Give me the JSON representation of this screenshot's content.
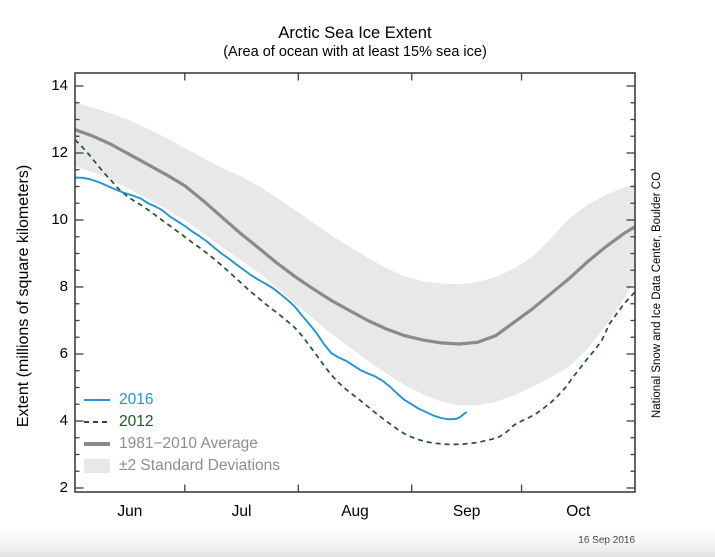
{
  "title": "Arctic Sea Ice Extent",
  "subtitle": "(Area of ocean with at least 15% sea ice)",
  "y_axis": {
    "label": "Extent (millions of square kilometers)",
    "min": 2,
    "max": 14,
    "major_tick_values": [
      2,
      4,
      6,
      8,
      10,
      12,
      14
    ],
    "minor_tick_step": 0.5
  },
  "x_axis": {
    "months": [
      {
        "label": "Jun",
        "center_day": 15
      },
      {
        "label": "Jul",
        "center_day": 45.5
      },
      {
        "label": "Aug",
        "center_day": 76.5
      },
      {
        "label": "Sep",
        "center_day": 107
      },
      {
        "label": "Oct",
        "center_day": 137.5
      }
    ],
    "month_start_tick_days": [
      30,
      61,
      92,
      122
    ],
    "total_days": 153
  },
  "legend": {
    "items": [
      {
        "label": "2016"
      },
      {
        "label": "2012"
      },
      {
        "label": "1981−2010 Average"
      },
      {
        "label": "±2 Standard Deviations"
      }
    ]
  },
  "annotations": {
    "source_vertical": "National Snow and Ice Data Center, Boulder CO",
    "date_label": "16 Sep 2016"
  },
  "colors": {
    "line_2016": "#2193d6",
    "line_2012": "#26512c",
    "average_line": "#8a8a8a",
    "std_dev_band": "#e8e8e8",
    "frame": "#3f3f3f",
    "muted_text": "#8e8e8e"
  },
  "chart_data": {
    "type": "line",
    "title": "Arctic Sea Ice Extent",
    "subtitle": "(Area of ocean with at least 15% sea ice)",
    "xlabel_months": [
      "Jun",
      "Jul",
      "Aug",
      "Sep",
      "Oct"
    ],
    "ylabel": "Extent (millions of square kilometers)",
    "x_unit": "days since Jun 1",
    "x_range_days": [
      0,
      153
    ],
    "ylim": [
      2,
      14
    ],
    "units": "millions of square kilometers",
    "grid": false,
    "legend_position": "lower left",
    "series": [
      {
        "name": "2016",
        "style": "solid",
        "points": [
          [
            0,
            11.27
          ],
          [
            2,
            11.26
          ],
          [
            4,
            11.22
          ],
          [
            6,
            11.15
          ],
          [
            8,
            11.06
          ],
          [
            10,
            10.96
          ],
          [
            12,
            10.87
          ],
          [
            14,
            10.79
          ],
          [
            16,
            10.72
          ],
          [
            18,
            10.64
          ],
          [
            20,
            10.5
          ],
          [
            22,
            10.4
          ],
          [
            24,
            10.28
          ],
          [
            26,
            10.1
          ],
          [
            28,
            9.96
          ],
          [
            30,
            9.82
          ],
          [
            32,
            9.66
          ],
          [
            34,
            9.52
          ],
          [
            36,
            9.36
          ],
          [
            38,
            9.18
          ],
          [
            40,
            9.0
          ],
          [
            42,
            8.85
          ],
          [
            44,
            8.68
          ],
          [
            46,
            8.52
          ],
          [
            48,
            8.36
          ],
          [
            50,
            8.22
          ],
          [
            52,
            8.1
          ],
          [
            54,
            7.97
          ],
          [
            56,
            7.8
          ],
          [
            58,
            7.62
          ],
          [
            60,
            7.42
          ],
          [
            62,
            7.15
          ],
          [
            64,
            6.9
          ],
          [
            66,
            6.62
          ],
          [
            68,
            6.3
          ],
          [
            70,
            6.03
          ],
          [
            72,
            5.9
          ],
          [
            74,
            5.8
          ],
          [
            76,
            5.66
          ],
          [
            78,
            5.52
          ],
          [
            80,
            5.42
          ],
          [
            82,
            5.33
          ],
          [
            84,
            5.2
          ],
          [
            86,
            5.03
          ],
          [
            88,
            4.82
          ],
          [
            90,
            4.63
          ],
          [
            92,
            4.5
          ],
          [
            94,
            4.36
          ],
          [
            96,
            4.26
          ],
          [
            98,
            4.16
          ],
          [
            100,
            4.09
          ],
          [
            102,
            4.05
          ],
          [
            104,
            4.06
          ],
          [
            105,
            4.1
          ],
          [
            107,
            4.27
          ]
        ]
      },
      {
        "name": "2012",
        "style": "dashed",
        "points": [
          [
            0,
            12.4
          ],
          [
            2,
            12.18
          ],
          [
            4,
            11.93
          ],
          [
            6,
            11.66
          ],
          [
            8,
            11.4
          ],
          [
            10,
            11.16
          ],
          [
            12,
            10.92
          ],
          [
            14,
            10.73
          ],
          [
            16,
            10.58
          ],
          [
            18,
            10.45
          ],
          [
            20,
            10.3
          ],
          [
            22,
            10.14
          ],
          [
            24,
            9.98
          ],
          [
            26,
            9.82
          ],
          [
            28,
            9.66
          ],
          [
            30,
            9.5
          ],
          [
            32,
            9.33
          ],
          [
            34,
            9.18
          ],
          [
            36,
            9.01
          ],
          [
            38,
            8.84
          ],
          [
            40,
            8.65
          ],
          [
            42,
            8.46
          ],
          [
            44,
            8.26
          ],
          [
            46,
            8.06
          ],
          [
            48,
            7.86
          ],
          [
            50,
            7.68
          ],
          [
            52,
            7.5
          ],
          [
            54,
            7.33
          ],
          [
            56,
            7.16
          ],
          [
            58,
            6.98
          ],
          [
            60,
            6.79
          ],
          [
            62,
            6.55
          ],
          [
            64,
            6.26
          ],
          [
            66,
            5.96
          ],
          [
            68,
            5.66
          ],
          [
            70,
            5.38
          ],
          [
            72,
            5.15
          ],
          [
            74,
            4.95
          ],
          [
            76,
            4.78
          ],
          [
            78,
            4.61
          ],
          [
            80,
            4.43
          ],
          [
            82,
            4.25
          ],
          [
            84,
            4.08
          ],
          [
            86,
            3.92
          ],
          [
            88,
            3.76
          ],
          [
            90,
            3.62
          ],
          [
            92,
            3.52
          ],
          [
            94,
            3.44
          ],
          [
            96,
            3.38
          ],
          [
            98,
            3.34
          ],
          [
            100,
            3.32
          ],
          [
            102,
            3.3
          ],
          [
            104,
            3.3
          ],
          [
            106,
            3.31
          ],
          [
            108,
            3.33
          ],
          [
            110,
            3.36
          ],
          [
            112,
            3.41
          ],
          [
            114,
            3.46
          ],
          [
            116,
            3.53
          ],
          [
            118,
            3.68
          ],
          [
            120,
            3.88
          ],
          [
            122,
            4.0
          ],
          [
            124,
            4.1
          ],
          [
            126,
            4.22
          ],
          [
            128,
            4.38
          ],
          [
            130,
            4.55
          ],
          [
            132,
            4.76
          ],
          [
            134,
            5.0
          ],
          [
            136,
            5.3
          ],
          [
            138,
            5.58
          ],
          [
            140,
            5.86
          ],
          [
            142,
            6.12
          ],
          [
            144,
            6.42
          ],
          [
            146,
            6.9
          ],
          [
            148,
            7.2
          ],
          [
            150,
            7.5
          ],
          [
            153,
            7.85
          ]
        ]
      },
      {
        "name": "1981-2010 Average",
        "style": "thick",
        "points": [
          [
            0,
            12.7
          ],
          [
            5,
            12.5
          ],
          [
            10,
            12.25
          ],
          [
            15,
            11.95
          ],
          [
            20,
            11.65
          ],
          [
            25,
            11.35
          ],
          [
            30,
            11.02
          ],
          [
            35,
            10.58
          ],
          [
            40,
            10.1
          ],
          [
            45,
            9.62
          ],
          [
            50,
            9.18
          ],
          [
            55,
            8.73
          ],
          [
            60,
            8.32
          ],
          [
            65,
            7.95
          ],
          [
            70,
            7.6
          ],
          [
            75,
            7.3
          ],
          [
            80,
            7.0
          ],
          [
            85,
            6.75
          ],
          [
            90,
            6.55
          ],
          [
            95,
            6.42
          ],
          [
            100,
            6.33
          ],
          [
            105,
            6.3
          ],
          [
            110,
            6.35
          ],
          [
            115,
            6.55
          ],
          [
            120,
            6.95
          ],
          [
            125,
            7.35
          ],
          [
            130,
            7.8
          ],
          [
            135,
            8.25
          ],
          [
            140,
            8.75
          ],
          [
            145,
            9.2
          ],
          [
            150,
            9.6
          ],
          [
            153,
            9.8
          ]
        ]
      }
    ],
    "band": {
      "name": "±2 Standard Deviations",
      "upper": [
        [
          0,
          13.5
        ],
        [
          5,
          13.35
        ],
        [
          10,
          13.18
        ],
        [
          15,
          12.97
        ],
        [
          20,
          12.72
        ],
        [
          25,
          12.45
        ],
        [
          30,
          12.15
        ],
        [
          35,
          11.85
        ],
        [
          40,
          11.57
        ],
        [
          45,
          11.32
        ],
        [
          50,
          11.02
        ],
        [
          55,
          10.68
        ],
        [
          60,
          10.3
        ],
        [
          65,
          9.92
        ],
        [
          70,
          9.55
        ],
        [
          75,
          9.2
        ],
        [
          80,
          8.87
        ],
        [
          85,
          8.57
        ],
        [
          90,
          8.32
        ],
        [
          95,
          8.17
        ],
        [
          100,
          8.1
        ],
        [
          105,
          8.08
        ],
        [
          110,
          8.15
        ],
        [
          115,
          8.3
        ],
        [
          120,
          8.55
        ],
        [
          125,
          8.9
        ],
        [
          130,
          9.45
        ],
        [
          135,
          10.05
        ],
        [
          140,
          10.45
        ],
        [
          145,
          10.75
        ],
        [
          150,
          10.98
        ],
        [
          153,
          11.08
        ]
      ],
      "lower": [
        [
          0,
          11.6
        ],
        [
          5,
          11.42
        ],
        [
          10,
          11.18
        ],
        [
          15,
          10.92
        ],
        [
          20,
          10.62
        ],
        [
          25,
          10.32
        ],
        [
          30,
          10.0
        ],
        [
          35,
          9.6
        ],
        [
          40,
          9.2
        ],
        [
          45,
          8.82
        ],
        [
          50,
          8.45
        ],
        [
          55,
          8.0
        ],
        [
          60,
          7.52
        ],
        [
          65,
          7.05
        ],
        [
          70,
          6.6
        ],
        [
          75,
          6.2
        ],
        [
          80,
          5.8
        ],
        [
          85,
          5.42
        ],
        [
          90,
          5.08
        ],
        [
          95,
          4.8
        ],
        [
          100,
          4.58
        ],
        [
          105,
          4.47
        ],
        [
          110,
          4.47
        ],
        [
          115,
          4.57
        ],
        [
          120,
          4.77
        ],
        [
          125,
          5.02
        ],
        [
          130,
          5.3
        ],
        [
          135,
          5.62
        ],
        [
          140,
          6.15
        ],
        [
          145,
          6.85
        ],
        [
          150,
          7.65
        ],
        [
          153,
          8.2
        ]
      ]
    }
  }
}
